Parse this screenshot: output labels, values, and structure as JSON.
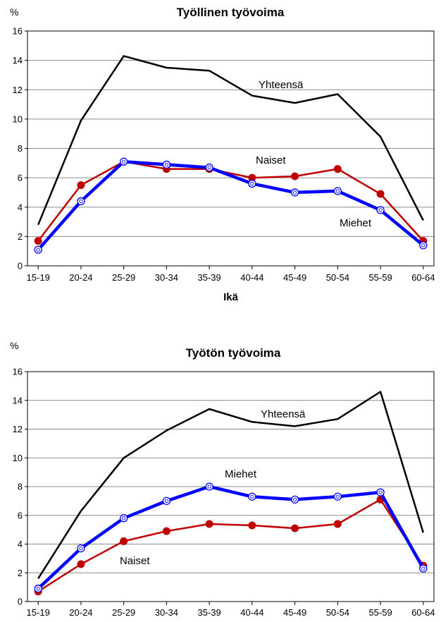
{
  "chart_data": [
    {
      "type": "line",
      "title": "Työllinen työvoima",
      "ylabel": "%",
      "xlabel": "Ikä",
      "ylim": [
        0,
        16
      ],
      "yticks": [
        0,
        2,
        4,
        6,
        8,
        10,
        12,
        14,
        16
      ],
      "grid": true,
      "legend": "none",
      "categories": [
        "15-19",
        "20-24",
        "25-29",
        "30-34",
        "35-39",
        "40-44",
        "45-49",
        "50-54",
        "55-59",
        "60-64"
      ],
      "series": [
        {
          "name": "Yhteensä",
          "color": "#000000",
          "marker": "none",
          "values": [
            2.8,
            9.9,
            14.3,
            13.5,
            13.3,
            11.6,
            11.1,
            11.7,
            8.8,
            3.1
          ]
        },
        {
          "name": "Naiset",
          "color": "#c00000",
          "marker": "filled-circle",
          "values": [
            1.7,
            5.5,
            7.1,
            6.6,
            6.6,
            6.0,
            6.1,
            6.6,
            4.9,
            1.7
          ]
        },
        {
          "name": "Miehet",
          "color": "#0000ff",
          "marker": "hollow-circle",
          "values": [
            1.1,
            4.4,
            7.1,
            6.9,
            6.7,
            5.6,
            5.0,
            5.1,
            3.8,
            1.4
          ]
        }
      ],
      "annotations": [
        {
          "text": "Yhteensä",
          "series": "Yhteensä"
        },
        {
          "text": "Naiset",
          "series": "Naiset"
        },
        {
          "text": "Miehet",
          "series": "Miehet"
        }
      ]
    },
    {
      "type": "line",
      "title": "Työtön työvoima",
      "ylabel": "%",
      "xlabel": "",
      "ylim": [
        0,
        16
      ],
      "yticks": [
        0,
        2,
        4,
        6,
        8,
        10,
        12,
        14,
        16
      ],
      "grid": true,
      "legend": "none",
      "categories": [
        "15-19",
        "20-24",
        "25-29",
        "30-34",
        "35-39",
        "40-44",
        "45-49",
        "50-54",
        "55-59",
        "60-64"
      ],
      "series": [
        {
          "name": "Yhteensä",
          "color": "#000000",
          "marker": "none",
          "values": [
            1.6,
            6.3,
            10.0,
            11.9,
            13.4,
            12.5,
            12.2,
            12.7,
            14.6,
            4.8
          ]
        },
        {
          "name": "Naiset",
          "color": "#c00000",
          "marker": "filled-circle",
          "values": [
            0.7,
            2.6,
            4.2,
            4.9,
            5.4,
            5.3,
            5.1,
            5.4,
            7.1,
            2.5
          ]
        },
        {
          "name": "Miehet",
          "color": "#0000ff",
          "marker": "hollow-circle",
          "values": [
            0.9,
            3.7,
            5.8,
            7.0,
            8.0,
            7.3,
            7.1,
            7.3,
            7.6,
            2.3
          ]
        }
      ],
      "annotations": [
        {
          "text": "Yhteensä",
          "series": "Yhteensä"
        },
        {
          "text": "Miehet",
          "series": "Miehet"
        },
        {
          "text": "Naiset",
          "series": "Naiset"
        }
      ]
    }
  ]
}
